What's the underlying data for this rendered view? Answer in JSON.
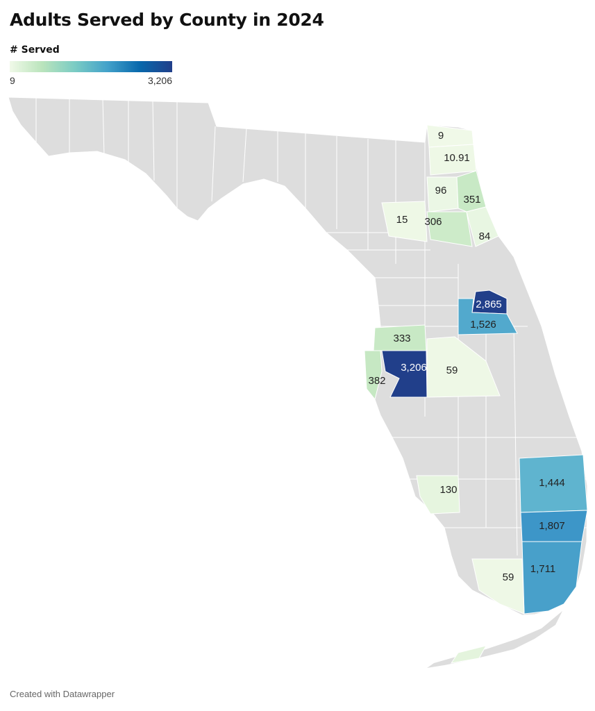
{
  "title": "Adults Served by County in 2024",
  "legend": {
    "title": "# Served",
    "min_label": "9",
    "max_label": "3,206",
    "min": 9,
    "max": 3206,
    "colors": [
      "#f0f9e8",
      "#bae4bc",
      "#7bccc4",
      "#43a2ca",
      "#0868ac",
      "#213f8a"
    ]
  },
  "footer": "Created with Datawrapper",
  "map": {
    "state": "Florida",
    "base_color": "#dddddd",
    "border_color": "#ffffff"
  },
  "counties": [
    {
      "label": "9",
      "value": 9
    },
    {
      "label": "10.91",
      "value": 10.91
    },
    {
      "label": "96",
      "value": 96
    },
    {
      "label": "351",
      "value": 351
    },
    {
      "label": "15",
      "value": 15
    },
    {
      "label": "306",
      "value": 306
    },
    {
      "label": "84",
      "value": 84
    },
    {
      "label": "2,865",
      "value": 2865
    },
    {
      "label": "1,526",
      "value": 1526
    },
    {
      "label": "333",
      "value": 333
    },
    {
      "label": "3,206",
      "value": 3206
    },
    {
      "label": "382",
      "value": 382
    },
    {
      "label": "59",
      "value": 59
    },
    {
      "label": "130",
      "value": 130
    },
    {
      "label": "1,444",
      "value": 1444
    },
    {
      "label": "1,807",
      "value": 1807
    },
    {
      "label": "1,711",
      "value": 1711
    },
    {
      "label": "59",
      "value": 59
    }
  ]
}
